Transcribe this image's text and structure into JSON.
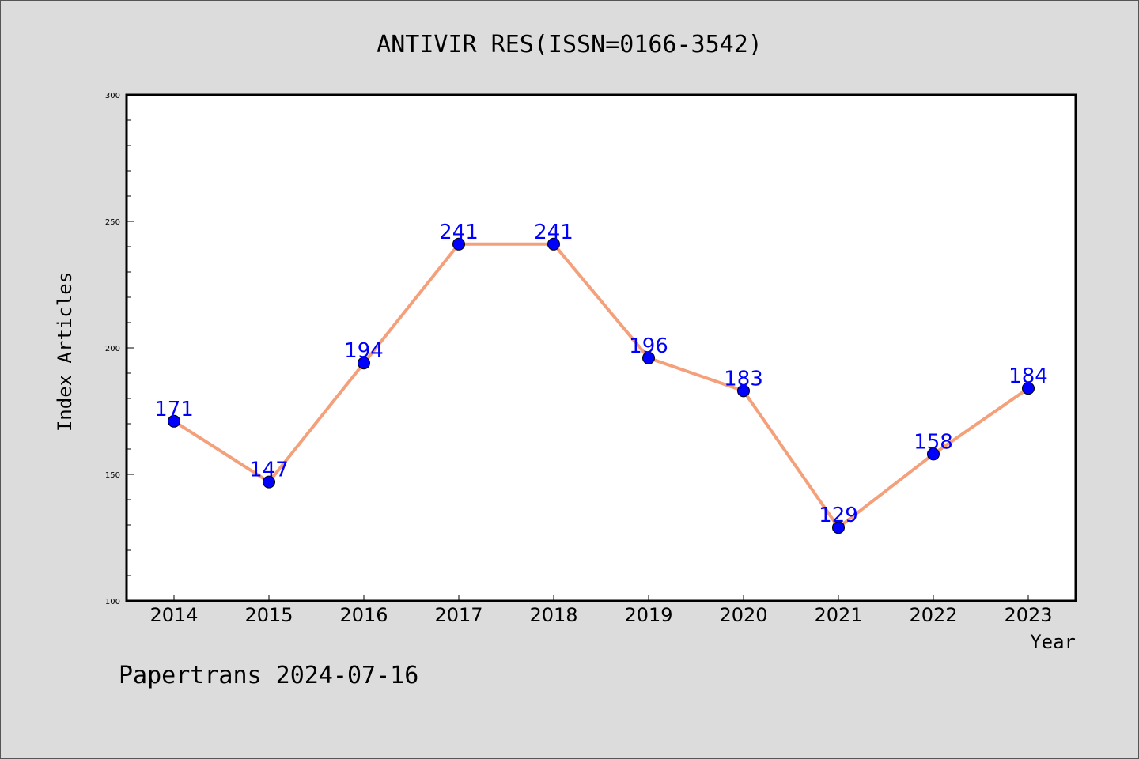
{
  "chart_data": {
    "type": "line",
    "title": "ANTIVIR RES(ISSN=0166-3542)",
    "xlabel": "Year",
    "ylabel": "Index Articles",
    "categories": [
      "2014",
      "2015",
      "2016",
      "2017",
      "2018",
      "2019",
      "2020",
      "2021",
      "2022",
      "2023"
    ],
    "series": [
      {
        "values": [
          171,
          147,
          194,
          241,
          241,
          196,
          183,
          129,
          158,
          184
        ]
      }
    ],
    "ylim": [
      100,
      300
    ],
    "yticks": [
      100,
      150,
      200,
      250,
      300
    ],
    "grid": false,
    "legend": "none",
    "colors": {
      "line": "#f4a07a",
      "marker": "#0000ff",
      "data_label": "#0000ff",
      "plot_bg": "#ffffff",
      "page_bg": "#dcdcdc"
    }
  },
  "footer": "Papertrans 2024-07-16"
}
